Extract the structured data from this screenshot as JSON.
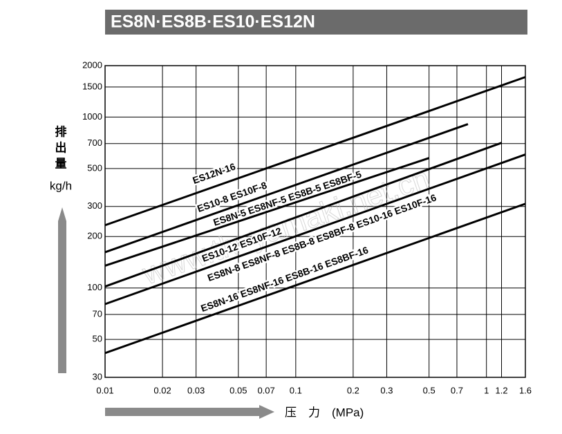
{
  "chart_data": {
    "type": "line",
    "title": "ES8N·ES8B·ES10·ES12N",
    "y_label_lines": [
      "排",
      "出",
      "量"
    ],
    "y_unit": "kg/h",
    "x_label": "压　力　(MPa)",
    "watermark": "www.tlv-yamaki.net.cn",
    "log_x": true,
    "log_y": true,
    "grid": true,
    "xlim": [
      0.01,
      1.6
    ],
    "ylim": [
      30,
      2000
    ],
    "xticks": [
      0.01,
      0.02,
      0.03,
      0.05,
      0.07,
      0.1,
      0.2,
      0.3,
      0.5,
      0.7,
      1,
      1.2,
      1.6
    ],
    "yticks": [
      30,
      50,
      70,
      100,
      200,
      300,
      500,
      700,
      1000,
      1500,
      2000
    ],
    "series": [
      {
        "name": "ES12N-16",
        "color": "#000000",
        "x": [
          0.01,
          1.6
        ],
        "values": [
          233,
          1715
        ]
      },
      {
        "name": "ES10-8  ES10F-8",
        "color": "#000000",
        "x": [
          0.01,
          0.8
        ],
        "values": [
          162,
          910
        ]
      },
      {
        "name": "ES8N-5  ES8NF-5  ES8B-5  ES8BF-5",
        "color": "#000000",
        "x": [
          0.01,
          0.5
        ],
        "values": [
          135,
          576
        ]
      },
      {
        "name": "ES10-12  ES10F-12",
        "color": "#000000",
        "x": [
          0.01,
          1.2
        ],
        "values": [
          102,
          707
        ]
      },
      {
        "name": "ES8N-8  ES8NF-8  ES8B-8  ES8BF-8  ES10-16  ES10F-16",
        "color": "#000000",
        "x": [
          0.01,
          1.6
        ],
        "values": [
          80.5,
          604
        ]
      },
      {
        "name": "ES8N-16  ES8NF-16  ES8B-16  ES8BF-16",
        "color": "#000000",
        "x": [
          0.01,
          1.6
        ],
        "values": [
          41.6,
          311
        ]
      }
    ]
  }
}
